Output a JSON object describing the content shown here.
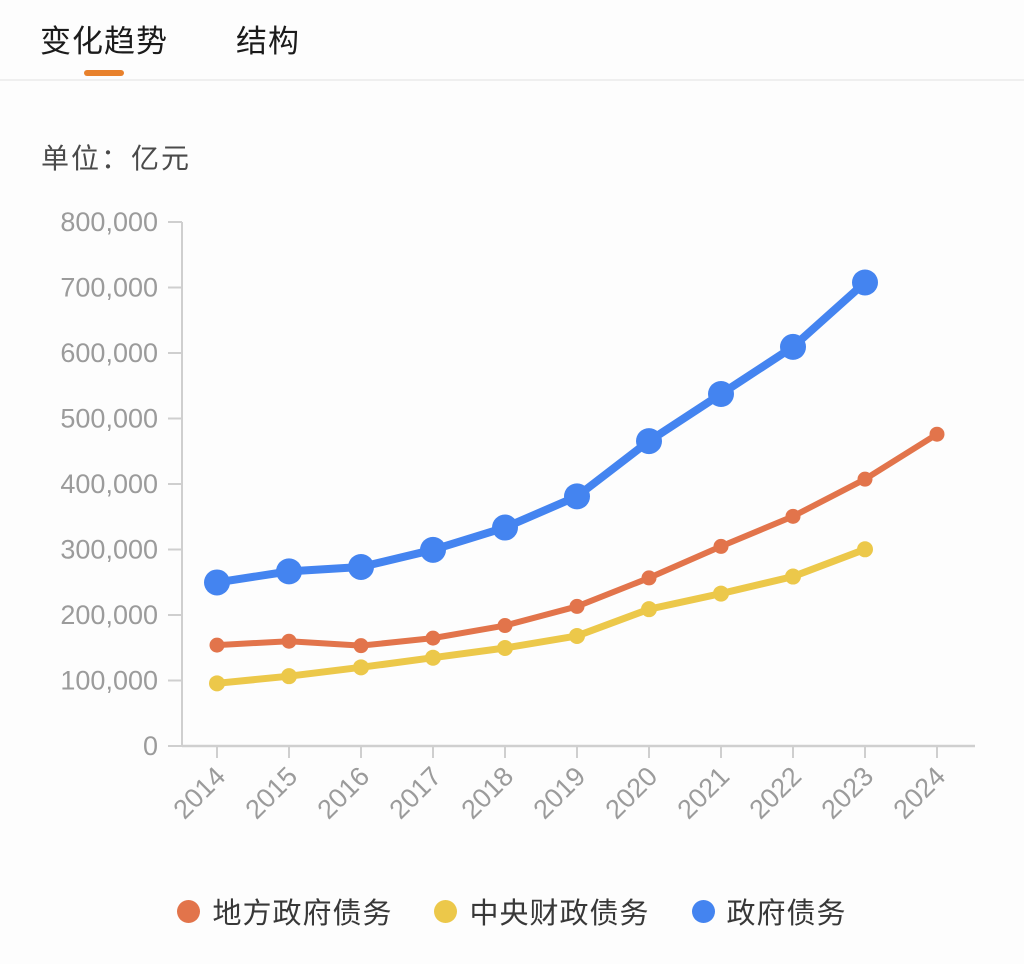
{
  "tabs": {
    "trend": "变化趋势",
    "structure": "结构"
  },
  "unit_label": "单位：亿元",
  "colors": {
    "accent": "#e8812c",
    "axis": "#cfcfcf",
    "tick_label": "#9b9b9b",
    "series_local": "#e2744b",
    "series_central": "#ecc84a",
    "series_total": "#4484f0"
  },
  "chart_data": {
    "type": "line",
    "title": "",
    "unit": "亿元",
    "xlabel": "",
    "ylabel": "单位：亿元",
    "ylim": [
      0,
      800000
    ],
    "y_tick_step": 100000,
    "grid": false,
    "legend_position": "bottom",
    "x": [
      "2014",
      "2015",
      "2016",
      "2017",
      "2018",
      "2019",
      "2020",
      "2021",
      "2022",
      "2023",
      "2024"
    ],
    "series": [
      {
        "name": "地方政府债务",
        "color": "#e2744b",
        "values": [
          154000,
          160000,
          153200,
          164700,
          183900,
          213100,
          256600,
          304700,
          350600,
          407400,
          476000
        ]
      },
      {
        "name": "中央财政债务",
        "color": "#ecc84a",
        "values": [
          95700,
          106600,
          120100,
          134800,
          149600,
          168000,
          208900,
          232700,
          258700,
          300300,
          null
        ]
      },
      {
        "name": "政府债务",
        "color": "#4484f0",
        "values": [
          249700,
          266600,
          273300,
          299500,
          333500,
          381100,
          465500,
          537400,
          609300,
          707700,
          null
        ]
      }
    ]
  }
}
